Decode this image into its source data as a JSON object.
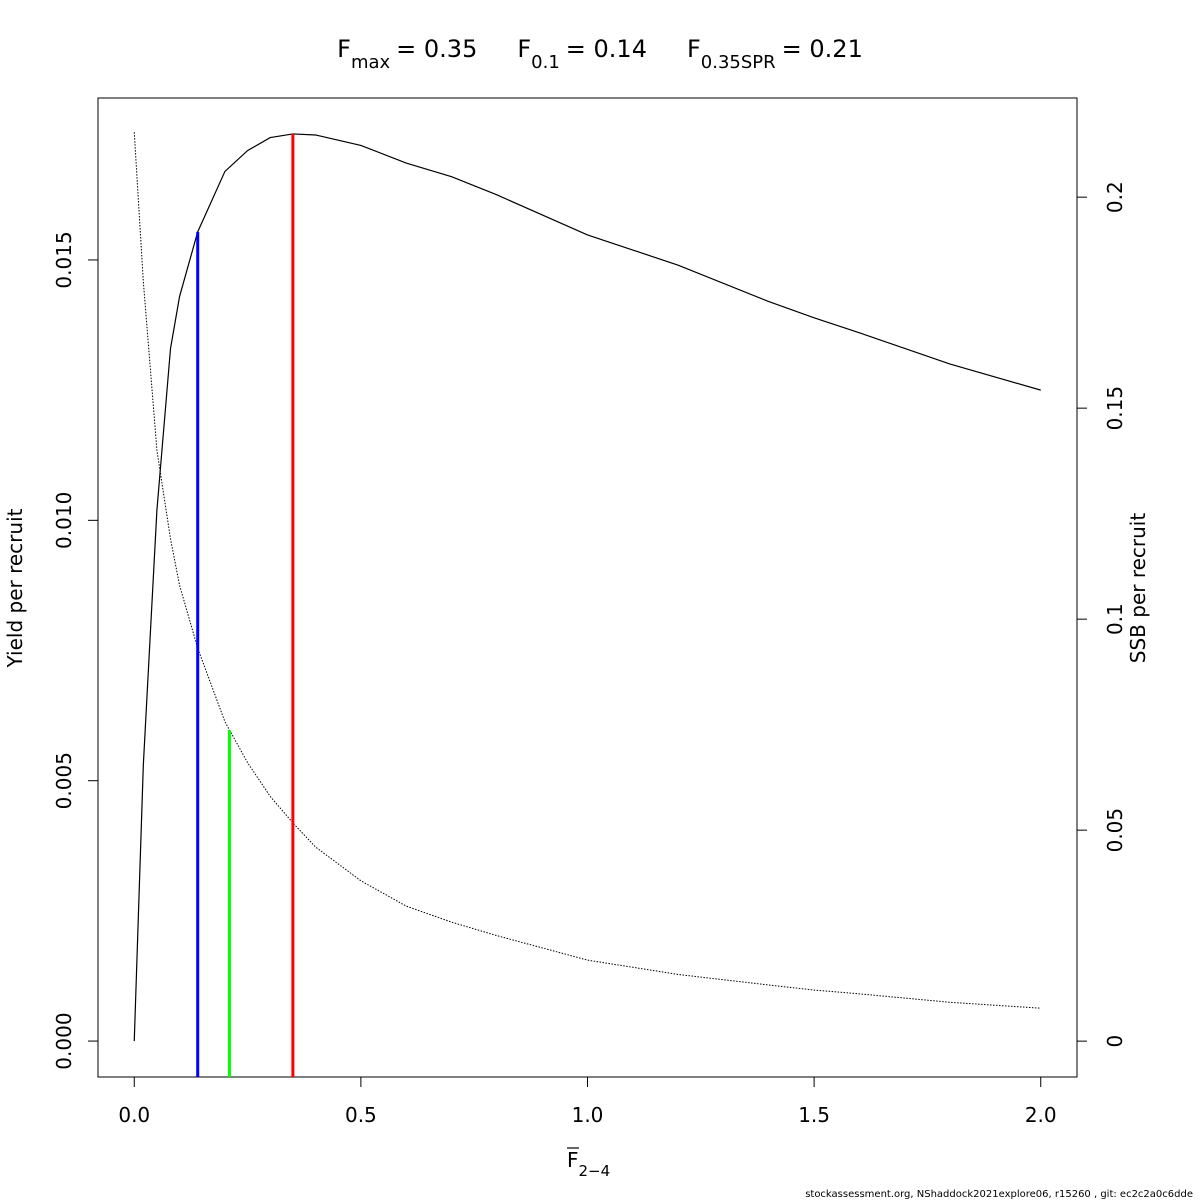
{
  "chart_data": {
    "type": "line",
    "ref_points": [
      {
        "name": "F",
        "sub": "max",
        "label": "= 0.35",
        "x": 0.35,
        "top": 0.01742,
        "axis": "y",
        "color": "#ff0000"
      },
      {
        "name": "F",
        "sub": "0.1",
        "label": "= 0.14",
        "x": 0.14,
        "top": 0.01554,
        "axis": "y",
        "color": "#0000ff"
      },
      {
        "name": "F",
        "sub": "0.35SPR",
        "label": "= 0.21",
        "x": 0.21,
        "top": 0.0737,
        "axis": "y2",
        "color": "#00ff00"
      }
    ],
    "xlabel": "F",
    "xlabel_sub": "2−4",
    "ylabel": "Yield per recruit",
    "y2label": "SSB per recruit",
    "footer": "stockassessment.org, NShaddock2021explore06, r15260 , git: ec2c2a0c6dde",
    "x": [
      0,
      0.02,
      0.05,
      0.08,
      0.1,
      0.14,
      0.2,
      0.25,
      0.3,
      0.35,
      0.4,
      0.5,
      0.6,
      0.7,
      0.8,
      1.0,
      1.2,
      1.4,
      1.5,
      1.6,
      1.8,
      2.0
    ],
    "series": [
      {
        "name": "Yield per recruit",
        "color": "#000000",
        "axis": "y",
        "dash": "solid",
        "values": [
          0,
          0.0053,
          0.0102,
          0.0133,
          0.0143,
          0.01554,
          0.0167,
          0.0171,
          0.01735,
          0.01742,
          0.0174,
          0.0172,
          0.01686,
          0.0166,
          0.01625,
          0.01548,
          0.0149,
          0.0142,
          0.01389,
          0.0136,
          0.013,
          0.0125
        ]
      },
      {
        "name": "SSB per recruit",
        "color": "#000000",
        "axis": "y2",
        "dash": "dotted",
        "values": [
          0.2154,
          0.18,
          0.14,
          0.119,
          0.108,
          0.0931,
          0.0757,
          0.066,
          0.058,
          0.0517,
          0.046,
          0.038,
          0.032,
          0.0282,
          0.025,
          0.0192,
          0.0158,
          0.0133,
          0.0121,
          0.0112,
          0.0092,
          0.0078
        ]
      }
    ],
    "xlim": [
      -0.08,
      2.08
    ],
    "xticks": [
      {
        "value": 0,
        "label": "0.0"
      },
      {
        "value": 0.5,
        "label": "0.5"
      },
      {
        "value": 1,
        "label": "1.0"
      },
      {
        "value": 1.5,
        "label": "1.5"
      },
      {
        "value": 2,
        "label": "2.0"
      }
    ],
    "ylim": [
      -0.00069,
      0.01811
    ],
    "yticks": [
      {
        "value": 0,
        "label": "0.000"
      },
      {
        "value": 0.005,
        "label": "0.005"
      },
      {
        "value": 0.01,
        "label": "0.010"
      },
      {
        "value": 0.015,
        "label": "0.015"
      }
    ],
    "y2lim": [
      -0.0085,
      0.2235
    ],
    "y2ticks": [
      0,
      0.05,
      0.1,
      0.15,
      0.2
    ]
  }
}
